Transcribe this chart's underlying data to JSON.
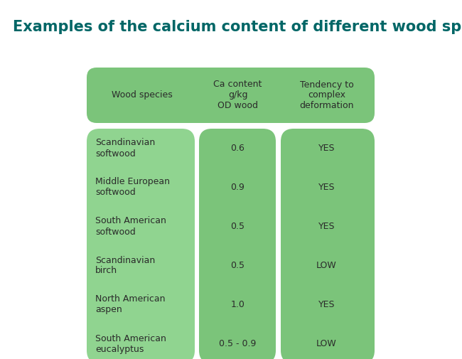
{
  "title": "Examples of the calcium content of different wood species",
  "title_color": "#006666",
  "title_fontsize": 15,
  "background_color": "#ffffff",
  "header": {
    "col1": "Wood species",
    "col2": "Ca content\ng/kg\nOD wood",
    "col3": "Tendency to\ncomplex\ndeformation"
  },
  "rows": [
    {
      "species": "Scandinavian\nsoftwood",
      "ca": "0.6",
      "tendency": "YES"
    },
    {
      "species": "Middle European\nsoftwood",
      "ca": "0.9",
      "tendency": "YES"
    },
    {
      "species": "South American\nsoftwood",
      "ca": "0.5",
      "tendency": "YES"
    },
    {
      "species": "Scandinavian\nbirch",
      "ca": "0.5",
      "tendency": "LOW"
    },
    {
      "species": "North American\naspen",
      "ca": "1.0",
      "tendency": "YES"
    },
    {
      "species": "South American\neucalyptus",
      "ca": "0.5 - 0.9",
      "tendency": "LOW"
    }
  ],
  "header_bg_color": "#7bc47a",
  "col1_bg_color": "#90d490",
  "col2_bg_color": "#7bc47a",
  "col3_bg_color": "#7bc47a",
  "text_color": "#2a2a2a",
  "cell_text_fontsize": 9,
  "header_text_fontsize": 9
}
